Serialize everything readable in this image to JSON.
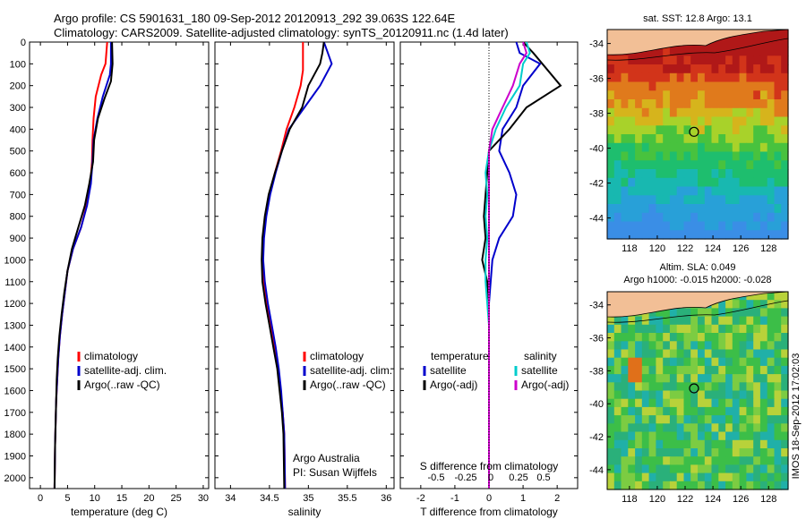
{
  "header": {
    "line1": "Argo profile: CS 5901631_180 09-Sep-2012 20120913_292 39.063S 122.64E",
    "line2": "Climatology: CARS2009. Satellite-adjusted climatology: synTS_20120911.nc (1.4d later)"
  },
  "chart_data": [
    {
      "type": "line",
      "panel": "temperature",
      "xlabel": "temperature (deg C)",
      "ylabel": "",
      "xlim": [
        -2,
        31
      ],
      "ylim": [
        2050,
        0
      ],
      "xticks": [
        0,
        5,
        10,
        15,
        20,
        25,
        30
      ],
      "yticks": [
        0,
        100,
        200,
        300,
        400,
        500,
        600,
        700,
        800,
        900,
        1000,
        1100,
        1200,
        1300,
        1400,
        1500,
        1600,
        1700,
        1800,
        1900,
        2000
      ],
      "legend": {
        "position": "lower-center",
        "entries": [
          "climatology",
          "satellite-adj. clim.",
          "Argo(..raw -QC)"
        ]
      },
      "series": [
        {
          "name": "climatology",
          "color": "#ff0000",
          "x": [
            12.3,
            12.0,
            11.2,
            10.2,
            9.8,
            9.6,
            9.5,
            9.2,
            8.5,
            7.5,
            6.0,
            5.0,
            4.5,
            4.0,
            3.6,
            3.3,
            3.1,
            2.9,
            2.8,
            2.7,
            2.6
          ],
          "y": [
            0,
            100,
            150,
            250,
            350,
            450,
            550,
            650,
            750,
            850,
            950,
            1050,
            1150,
            1250,
            1350,
            1450,
            1550,
            1650,
            1750,
            1850,
            2050
          ]
        },
        {
          "name": "satellite-adj. clim.",
          "color": "#0000cc",
          "x": [
            13.0,
            13.0,
            12.8,
            11.5,
            10.5,
            9.8,
            9.6,
            9.3,
            8.6,
            7.5,
            6.0,
            5.0,
            4.5,
            4.0,
            3.6,
            3.3,
            3.1,
            2.9,
            2.8,
            2.7,
            2.6
          ],
          "y": [
            0,
            100,
            150,
            250,
            350,
            450,
            550,
            650,
            750,
            850,
            950,
            1050,
            1150,
            1250,
            1350,
            1450,
            1550,
            1650,
            1750,
            1850,
            2050
          ]
        },
        {
          "name": "Argo(..raw -QC)",
          "color": "#000000",
          "x": [
            13.2,
            13.3,
            13.0,
            11.8,
            10.6,
            9.9,
            9.7,
            9.0,
            8.2,
            7.0,
            5.8,
            5.0,
            4.4,
            3.9,
            3.5,
            3.2,
            3.0,
            2.9,
            2.8,
            2.7,
            2.6
          ],
          "y": [
            0,
            100,
            180,
            260,
            350,
            450,
            550,
            650,
            750,
            850,
            950,
            1050,
            1150,
            1250,
            1350,
            1450,
            1550,
            1650,
            1750,
            1850,
            2050
          ]
        }
      ]
    },
    {
      "type": "line",
      "panel": "salinity",
      "xlabel": "salinity",
      "ylabel": "",
      "xlim": [
        33.8,
        36.1
      ],
      "ylim": [
        2050,
        0
      ],
      "xticks": [
        34,
        34.5,
        35,
        35.5,
        36
      ],
      "legend": {
        "position": "lower-center",
        "entries": [
          "climatology",
          "satellite-adj. clim.",
          "Argo(..raw -QC)"
        ]
      },
      "annotation": [
        "Argo Australia",
        "PI: Susan Wijffels"
      ],
      "series": [
        {
          "name": "climatology",
          "color": "#ff0000",
          "x": [
            34.93,
            34.93,
            34.93,
            34.9,
            34.82,
            34.72,
            34.65,
            34.57,
            34.5,
            34.45,
            34.42,
            34.41,
            34.43,
            34.47,
            34.52,
            34.57,
            34.61,
            34.64,
            34.67,
            34.69,
            34.7
          ],
          "y": [
            0,
            80,
            130,
            200,
            300,
            400,
            500,
            600,
            700,
            800,
            900,
            1000,
            1100,
            1200,
            1300,
            1400,
            1500,
            1600,
            1700,
            1800,
            2050
          ]
        },
        {
          "name": "satellite-adj. clim.",
          "color": "#0000cc",
          "x": [
            35.2,
            35.25,
            35.3,
            35.15,
            34.95,
            34.75,
            34.66,
            34.58,
            34.51,
            34.46,
            34.43,
            34.42,
            34.44,
            34.48,
            34.53,
            34.58,
            34.62,
            34.65,
            34.67,
            34.69,
            34.7
          ],
          "y": [
            0,
            50,
            100,
            200,
            300,
            400,
            500,
            600,
            700,
            800,
            900,
            1000,
            1100,
            1200,
            1300,
            1400,
            1500,
            1600,
            1700,
            1800,
            2050
          ]
        },
        {
          "name": "Argo(..raw -QC)",
          "color": "#000000",
          "x": [
            35.2,
            35.18,
            35.15,
            35.0,
            34.92,
            34.76,
            34.66,
            34.57,
            34.49,
            34.44,
            34.41,
            34.4,
            34.41,
            34.45,
            34.5,
            34.55,
            34.6,
            34.63,
            34.66,
            34.68,
            34.69
          ],
          "y": [
            0,
            50,
            100,
            200,
            300,
            400,
            500,
            600,
            700,
            800,
            900,
            1000,
            1100,
            1200,
            1300,
            1400,
            1500,
            1600,
            1700,
            1800,
            2050
          ]
        }
      ]
    },
    {
      "type": "line",
      "panel": "difference",
      "xlabel": "T difference from climatology",
      "xlabel_top": "S difference from climatology",
      "xlim": [
        -2.6,
        2.6
      ],
      "ylim": [
        2050,
        0
      ],
      "xticks": [
        -2,
        -1,
        0,
        1,
        2
      ],
      "xticks_top": [
        "-0.5",
        "-0.25",
        "0",
        "0.25",
        "0.5"
      ],
      "legend_temperature": {
        "title": "temperature",
        "entries": [
          "satellite",
          "Argo(-adj)"
        ]
      },
      "legend_salinity": {
        "title": "salinity",
        "entries": [
          "satellite",
          "Argo(-adj)"
        ]
      },
      "series": [
        {
          "name": "temperature satellite",
          "color": "#0000cc",
          "x": [
            0.8,
            0.9,
            1.5,
            1.0,
            0.8,
            0.4,
            0.3,
            0.6,
            0.8,
            0.7,
            0.3,
            0.1,
            0.05,
            0.0,
            0.0,
            0.0,
            0.0,
            0.0,
            0.0,
            0.0
          ],
          "y": [
            0,
            50,
            100,
            200,
            300,
            400,
            500,
            600,
            700,
            800,
            900,
            1000,
            1100,
            1200,
            1300,
            1400,
            1500,
            1600,
            1700,
            2050
          ]
        },
        {
          "name": "temperature Argo(-adj)",
          "color": "#000000",
          "x": [
            1.0,
            1.3,
            2.1,
            1.1,
            0.6,
            0.0,
            -0.05,
            -0.1,
            -0.15,
            -0.1,
            -0.2,
            -0.05,
            0.0,
            0.0,
            0.0,
            0.0,
            0.0,
            0.0,
            0.0,
            0.0
          ],
          "y": [
            0,
            50,
            200,
            300,
            400,
            500,
            600,
            700,
            800,
            900,
            1000,
            1100,
            1200,
            1300,
            1400,
            1500,
            1600,
            1700,
            1800,
            2050
          ]
        },
        {
          "name": "salinity satellite",
          "color": "#00cccc",
          "x": [
            1.1,
            1.2,
            1.0,
            0.9,
            0.5,
            0.2,
            0.0,
            -0.1,
            -0.05,
            -0.1,
            -0.05,
            -0.1,
            -0.1,
            -0.05,
            0.0,
            0.0,
            0.0,
            0.0,
            0.0,
            0.0
          ],
          "y": [
            0,
            50,
            100,
            200,
            300,
            400,
            500,
            600,
            700,
            800,
            900,
            1000,
            1100,
            1200,
            1300,
            1400,
            1500,
            1600,
            1700,
            2050
          ]
        },
        {
          "name": "salinity Argo(-adj)",
          "color": "#cc00cc",
          "x": [
            1.0,
            1.1,
            0.9,
            0.7,
            0.4,
            0.1,
            0.0,
            0.0,
            0.0,
            0.0,
            0.0,
            0.0,
            0.0,
            0.0,
            0.0,
            0.0,
            0.0,
            0.0,
            0.0,
            0.0
          ],
          "y": [
            0,
            50,
            100,
            200,
            300,
            400,
            500,
            600,
            700,
            800,
            900,
            1000,
            1100,
            1200,
            1300,
            1400,
            1500,
            1600,
            1700,
            2050
          ]
        }
      ]
    },
    {
      "type": "heatmap",
      "panel": "sst-map",
      "title": "sat. SST: 12.8  Argo: 13.1",
      "xticks": [
        "118",
        "120",
        "122",
        "124",
        "126",
        "128"
      ],
      "yticks": [
        "-34",
        "-36",
        "-38",
        "-40",
        "-42",
        "-44"
      ],
      "xlim": [
        116.4,
        129.4
      ],
      "ylim": [
        -33.2,
        -45.2
      ],
      "marker": {
        "lon": 122.64,
        "lat": -39.063
      }
    },
    {
      "type": "heatmap",
      "panel": "sla-map",
      "title": "Altim. SLA: 0.049",
      "subtitle": "Argo h1000: -0.015 h2000: -0.028",
      "xticks": [
        "118",
        "120",
        "122",
        "124",
        "126",
        "128"
      ],
      "yticks": [
        "-34",
        "-36",
        "-38",
        "-40",
        "-42",
        "-44"
      ],
      "xlim": [
        116.4,
        129.4
      ],
      "ylim": [
        -33.2,
        -45.2
      ],
      "marker": {
        "lon": 122.64,
        "lat": -39.063
      }
    }
  ],
  "side_text": "IMOS 18-Sep-2012 17:02:03",
  "colors": {
    "climatology": "#ff0000",
    "satellite": "#0000cc",
    "argo": "#000000",
    "sal_satellite": "#00cccc",
    "sal_argo": "#cc00cc",
    "land": "#f2bf96"
  }
}
